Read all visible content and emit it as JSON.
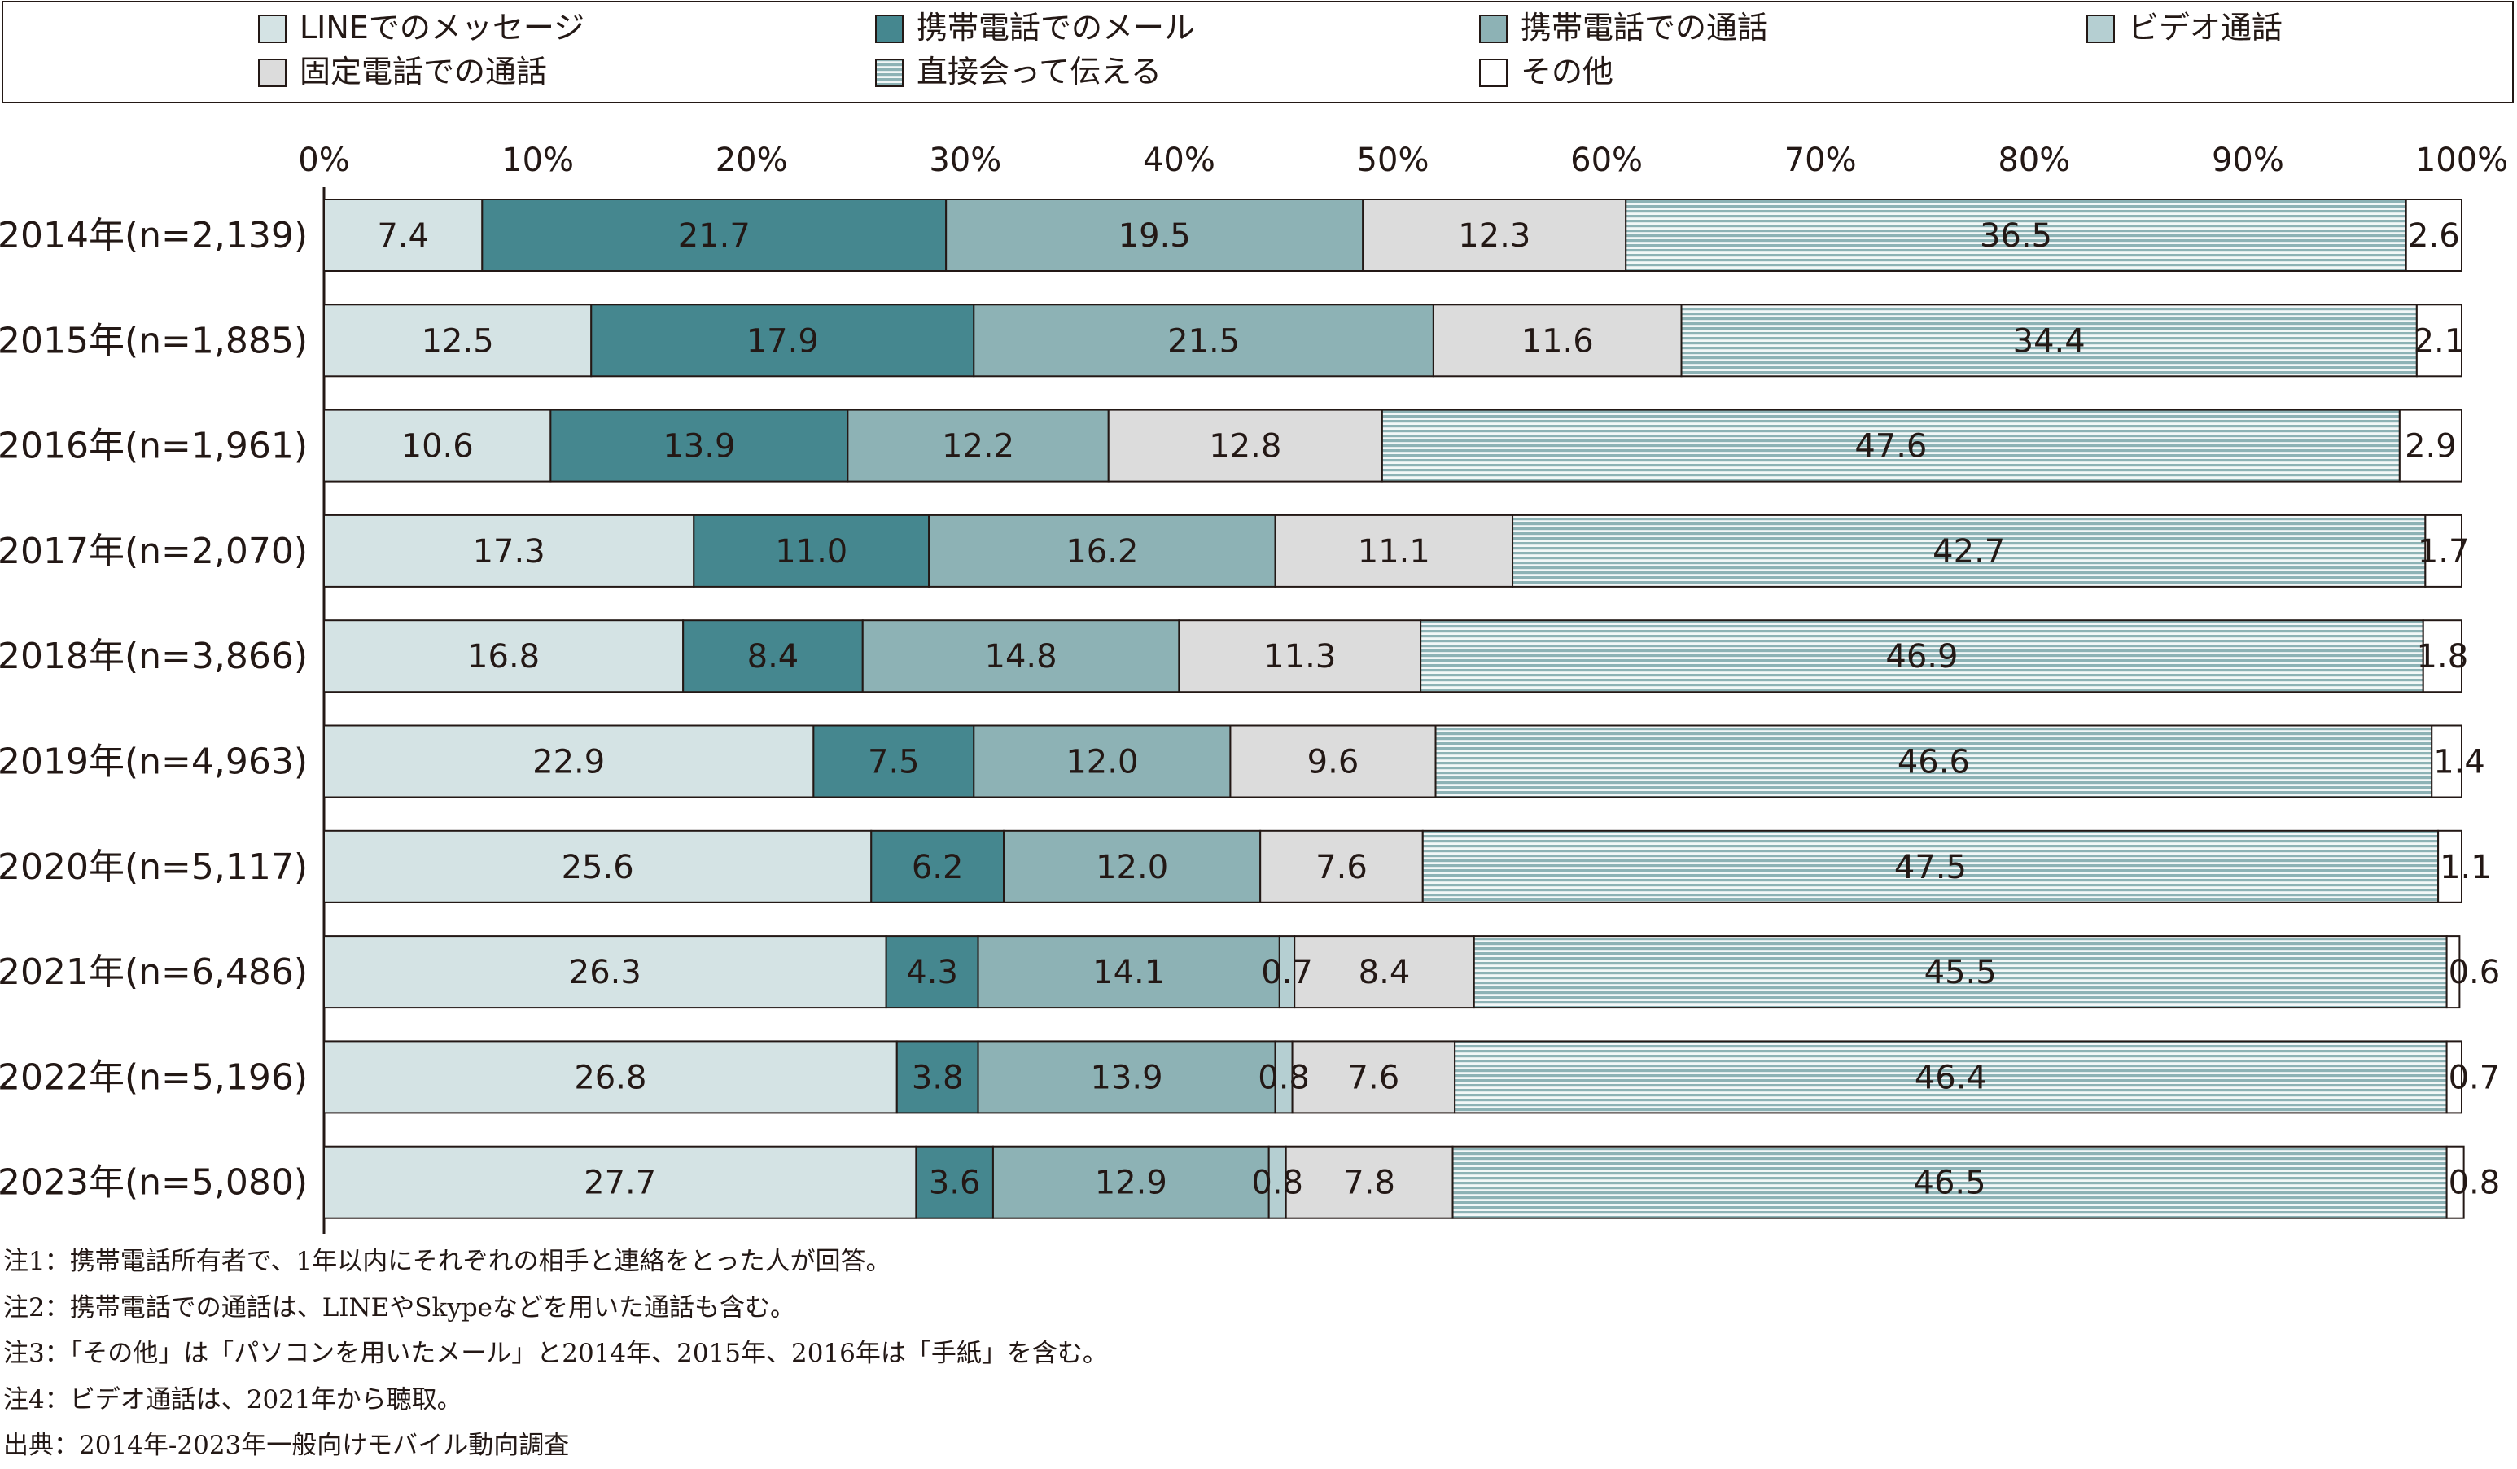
{
  "chart_data": {
    "type": "bar",
    "orientation": "horizontal",
    "stacked": "percent",
    "categories": [
      "2014年(n=2,139)",
      "2015年(n=1,885)",
      "2016年(n=1,961)",
      "2017年(n=2,070)",
      "2018年(n=3,866)",
      "2019年(n=4,963)",
      "2020年(n=5,117)",
      "2021年(n=6,486)",
      "2022年(n=5,196)",
      "2023年(n=5,080)"
    ],
    "xlim": [
      0,
      100
    ],
    "xticks": [
      "0%",
      "10%",
      "20%",
      "30%",
      "40%",
      "50%",
      "60%",
      "70%",
      "80%",
      "90%",
      "100%"
    ],
    "grid": false,
    "legend_position": "top",
    "series": [
      {
        "name": "LINEでのメッセージ",
        "color": "#d4e3e4",
        "pattern": "solid",
        "values": [
          7.4,
          12.5,
          10.6,
          17.3,
          16.8,
          22.9,
          25.6,
          26.3,
          26.8,
          27.7
        ],
        "labels": [
          "7.4",
          "12.5",
          "10.6",
          "17.3",
          "16.8",
          "22.9",
          "25.6",
          "26.3",
          "26.8",
          "27.7"
        ]
      },
      {
        "name": "携帯電話でのメール",
        "color": "#45878f",
        "pattern": "solid",
        "values": [
          21.7,
          17.9,
          13.9,
          11.0,
          8.4,
          7.5,
          6.2,
          4.3,
          3.8,
          3.6
        ],
        "labels": [
          "21.7",
          "17.9",
          "13.9",
          "11.0",
          "8.4",
          "7.5",
          "6.2",
          "4.3",
          "3.8",
          "3.6"
        ]
      },
      {
        "name": "携帯電話での通話",
        "color": "#8db2b5",
        "pattern": "solid",
        "values": [
          19.5,
          21.5,
          12.2,
          16.2,
          14.8,
          12.0,
          12.0,
          14.1,
          13.9,
          12.9
        ],
        "labels": [
          "19.5",
          "21.5",
          "12.2",
          "16.2",
          "14.8",
          "12.0",
          "12.0",
          "14.1",
          "13.9",
          "12.9"
        ]
      },
      {
        "name": "ビデオ通話",
        "color": "#b5cfd2",
        "pattern": "solid",
        "values": [
          null,
          null,
          null,
          null,
          null,
          null,
          null,
          0.7,
          0.8,
          0.8
        ],
        "labels": [
          "",
          "",
          "",
          "",
          "",
          "",
          "",
          "0.7",
          "0.8",
          "0.8"
        ]
      },
      {
        "name": "固定電話での通話",
        "color": "#dcdcdc",
        "pattern": "solid",
        "values": [
          12.3,
          11.6,
          12.8,
          11.1,
          11.3,
          9.6,
          7.6,
          8.4,
          7.6,
          7.8
        ],
        "labels": [
          "12.3",
          "11.6",
          "12.8",
          "11.1",
          "11.3",
          "9.6",
          "7.6",
          "8.4",
          "7.6",
          "7.8"
        ]
      },
      {
        "name": "直接会って伝える",
        "color": "#8db2b5",
        "pattern": "horizontal-stripes",
        "values": [
          36.5,
          34.4,
          47.6,
          42.7,
          46.9,
          46.6,
          47.5,
          45.5,
          46.4,
          46.5
        ],
        "labels": [
          "36.5",
          "34.4",
          "47.6",
          "42.7",
          "46.9",
          "46.6",
          "47.5",
          "45.5",
          "46.4",
          "46.5"
        ]
      },
      {
        "name": "その他",
        "color": "#ffffff",
        "pattern": "solid",
        "values": [
          2.6,
          2.1,
          2.9,
          1.7,
          1.8,
          1.4,
          1.1,
          0.6,
          0.7,
          0.8
        ],
        "labels": [
          "2.6",
          "2.1",
          "2.9",
          "1.7",
          "1.8",
          "1.4",
          "1.1",
          "0.6",
          "0.7",
          "0.8"
        ]
      }
    ]
  },
  "notes": [
    "注1：携帯電話所有者で、1年以内にそれぞれの相手と連絡をとった人が回答。",
    "注2：携帯電話での通話は、LINEやSkypeなどを用いた通話も含む。",
    "注3：「その他」は「パソコンを用いたメール」と2014年、2015年、2016年は「手紙」を含む。",
    "注4：ビデオ通話は、2021年から聴取。",
    "出典：2014年-2023年一般向けモバイル動向調査"
  ]
}
